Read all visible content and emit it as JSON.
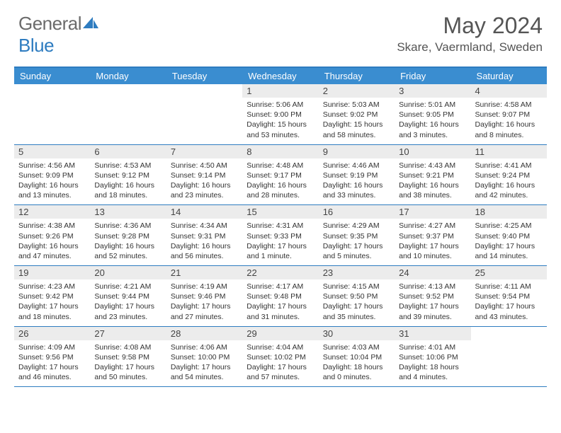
{
  "logo": {
    "text_gray": "General",
    "text_blue": "Blue"
  },
  "title": "May 2024",
  "location": "Skare, Vaermland, Sweden",
  "colors": {
    "header_bg": "#3a8dd0",
    "header_border": "#2e7cc0",
    "daynum_bg": "#ececec",
    "text": "#333333",
    "logo_gray": "#6b6b6b",
    "logo_blue": "#2e7cc0"
  },
  "day_headers": [
    "Sunday",
    "Monday",
    "Tuesday",
    "Wednesday",
    "Thursday",
    "Friday",
    "Saturday"
  ],
  "weeks": [
    [
      {
        "n": "",
        "sr": "",
        "ss": "",
        "dl": ""
      },
      {
        "n": "",
        "sr": "",
        "ss": "",
        "dl": ""
      },
      {
        "n": "",
        "sr": "",
        "ss": "",
        "dl": ""
      },
      {
        "n": "1",
        "sr": "Sunrise: 5:06 AM",
        "ss": "Sunset: 9:00 PM",
        "dl": "Daylight: 15 hours and 53 minutes."
      },
      {
        "n": "2",
        "sr": "Sunrise: 5:03 AM",
        "ss": "Sunset: 9:02 PM",
        "dl": "Daylight: 15 hours and 58 minutes."
      },
      {
        "n": "3",
        "sr": "Sunrise: 5:01 AM",
        "ss": "Sunset: 9:05 PM",
        "dl": "Daylight: 16 hours and 3 minutes."
      },
      {
        "n": "4",
        "sr": "Sunrise: 4:58 AM",
        "ss": "Sunset: 9:07 PM",
        "dl": "Daylight: 16 hours and 8 minutes."
      }
    ],
    [
      {
        "n": "5",
        "sr": "Sunrise: 4:56 AM",
        "ss": "Sunset: 9:09 PM",
        "dl": "Daylight: 16 hours and 13 minutes."
      },
      {
        "n": "6",
        "sr": "Sunrise: 4:53 AM",
        "ss": "Sunset: 9:12 PM",
        "dl": "Daylight: 16 hours and 18 minutes."
      },
      {
        "n": "7",
        "sr": "Sunrise: 4:50 AM",
        "ss": "Sunset: 9:14 PM",
        "dl": "Daylight: 16 hours and 23 minutes."
      },
      {
        "n": "8",
        "sr": "Sunrise: 4:48 AM",
        "ss": "Sunset: 9:17 PM",
        "dl": "Daylight: 16 hours and 28 minutes."
      },
      {
        "n": "9",
        "sr": "Sunrise: 4:46 AM",
        "ss": "Sunset: 9:19 PM",
        "dl": "Daylight: 16 hours and 33 minutes."
      },
      {
        "n": "10",
        "sr": "Sunrise: 4:43 AM",
        "ss": "Sunset: 9:21 PM",
        "dl": "Daylight: 16 hours and 38 minutes."
      },
      {
        "n": "11",
        "sr": "Sunrise: 4:41 AM",
        "ss": "Sunset: 9:24 PM",
        "dl": "Daylight: 16 hours and 42 minutes."
      }
    ],
    [
      {
        "n": "12",
        "sr": "Sunrise: 4:38 AM",
        "ss": "Sunset: 9:26 PM",
        "dl": "Daylight: 16 hours and 47 minutes."
      },
      {
        "n": "13",
        "sr": "Sunrise: 4:36 AM",
        "ss": "Sunset: 9:28 PM",
        "dl": "Daylight: 16 hours and 52 minutes."
      },
      {
        "n": "14",
        "sr": "Sunrise: 4:34 AM",
        "ss": "Sunset: 9:31 PM",
        "dl": "Daylight: 16 hours and 56 minutes."
      },
      {
        "n": "15",
        "sr": "Sunrise: 4:31 AM",
        "ss": "Sunset: 9:33 PM",
        "dl": "Daylight: 17 hours and 1 minute."
      },
      {
        "n": "16",
        "sr": "Sunrise: 4:29 AM",
        "ss": "Sunset: 9:35 PM",
        "dl": "Daylight: 17 hours and 5 minutes."
      },
      {
        "n": "17",
        "sr": "Sunrise: 4:27 AM",
        "ss": "Sunset: 9:37 PM",
        "dl": "Daylight: 17 hours and 10 minutes."
      },
      {
        "n": "18",
        "sr": "Sunrise: 4:25 AM",
        "ss": "Sunset: 9:40 PM",
        "dl": "Daylight: 17 hours and 14 minutes."
      }
    ],
    [
      {
        "n": "19",
        "sr": "Sunrise: 4:23 AM",
        "ss": "Sunset: 9:42 PM",
        "dl": "Daylight: 17 hours and 18 minutes."
      },
      {
        "n": "20",
        "sr": "Sunrise: 4:21 AM",
        "ss": "Sunset: 9:44 PM",
        "dl": "Daylight: 17 hours and 23 minutes."
      },
      {
        "n": "21",
        "sr": "Sunrise: 4:19 AM",
        "ss": "Sunset: 9:46 PM",
        "dl": "Daylight: 17 hours and 27 minutes."
      },
      {
        "n": "22",
        "sr": "Sunrise: 4:17 AM",
        "ss": "Sunset: 9:48 PM",
        "dl": "Daylight: 17 hours and 31 minutes."
      },
      {
        "n": "23",
        "sr": "Sunrise: 4:15 AM",
        "ss": "Sunset: 9:50 PM",
        "dl": "Daylight: 17 hours and 35 minutes."
      },
      {
        "n": "24",
        "sr": "Sunrise: 4:13 AM",
        "ss": "Sunset: 9:52 PM",
        "dl": "Daylight: 17 hours and 39 minutes."
      },
      {
        "n": "25",
        "sr": "Sunrise: 4:11 AM",
        "ss": "Sunset: 9:54 PM",
        "dl": "Daylight: 17 hours and 43 minutes."
      }
    ],
    [
      {
        "n": "26",
        "sr": "Sunrise: 4:09 AM",
        "ss": "Sunset: 9:56 PM",
        "dl": "Daylight: 17 hours and 46 minutes."
      },
      {
        "n": "27",
        "sr": "Sunrise: 4:08 AM",
        "ss": "Sunset: 9:58 PM",
        "dl": "Daylight: 17 hours and 50 minutes."
      },
      {
        "n": "28",
        "sr": "Sunrise: 4:06 AM",
        "ss": "Sunset: 10:00 PM",
        "dl": "Daylight: 17 hours and 54 minutes."
      },
      {
        "n": "29",
        "sr": "Sunrise: 4:04 AM",
        "ss": "Sunset: 10:02 PM",
        "dl": "Daylight: 17 hours and 57 minutes."
      },
      {
        "n": "30",
        "sr": "Sunrise: 4:03 AM",
        "ss": "Sunset: 10:04 PM",
        "dl": "Daylight: 18 hours and 0 minutes."
      },
      {
        "n": "31",
        "sr": "Sunrise: 4:01 AM",
        "ss": "Sunset: 10:06 PM",
        "dl": "Daylight: 18 hours and 4 minutes."
      },
      {
        "n": "",
        "sr": "",
        "ss": "",
        "dl": ""
      }
    ]
  ]
}
